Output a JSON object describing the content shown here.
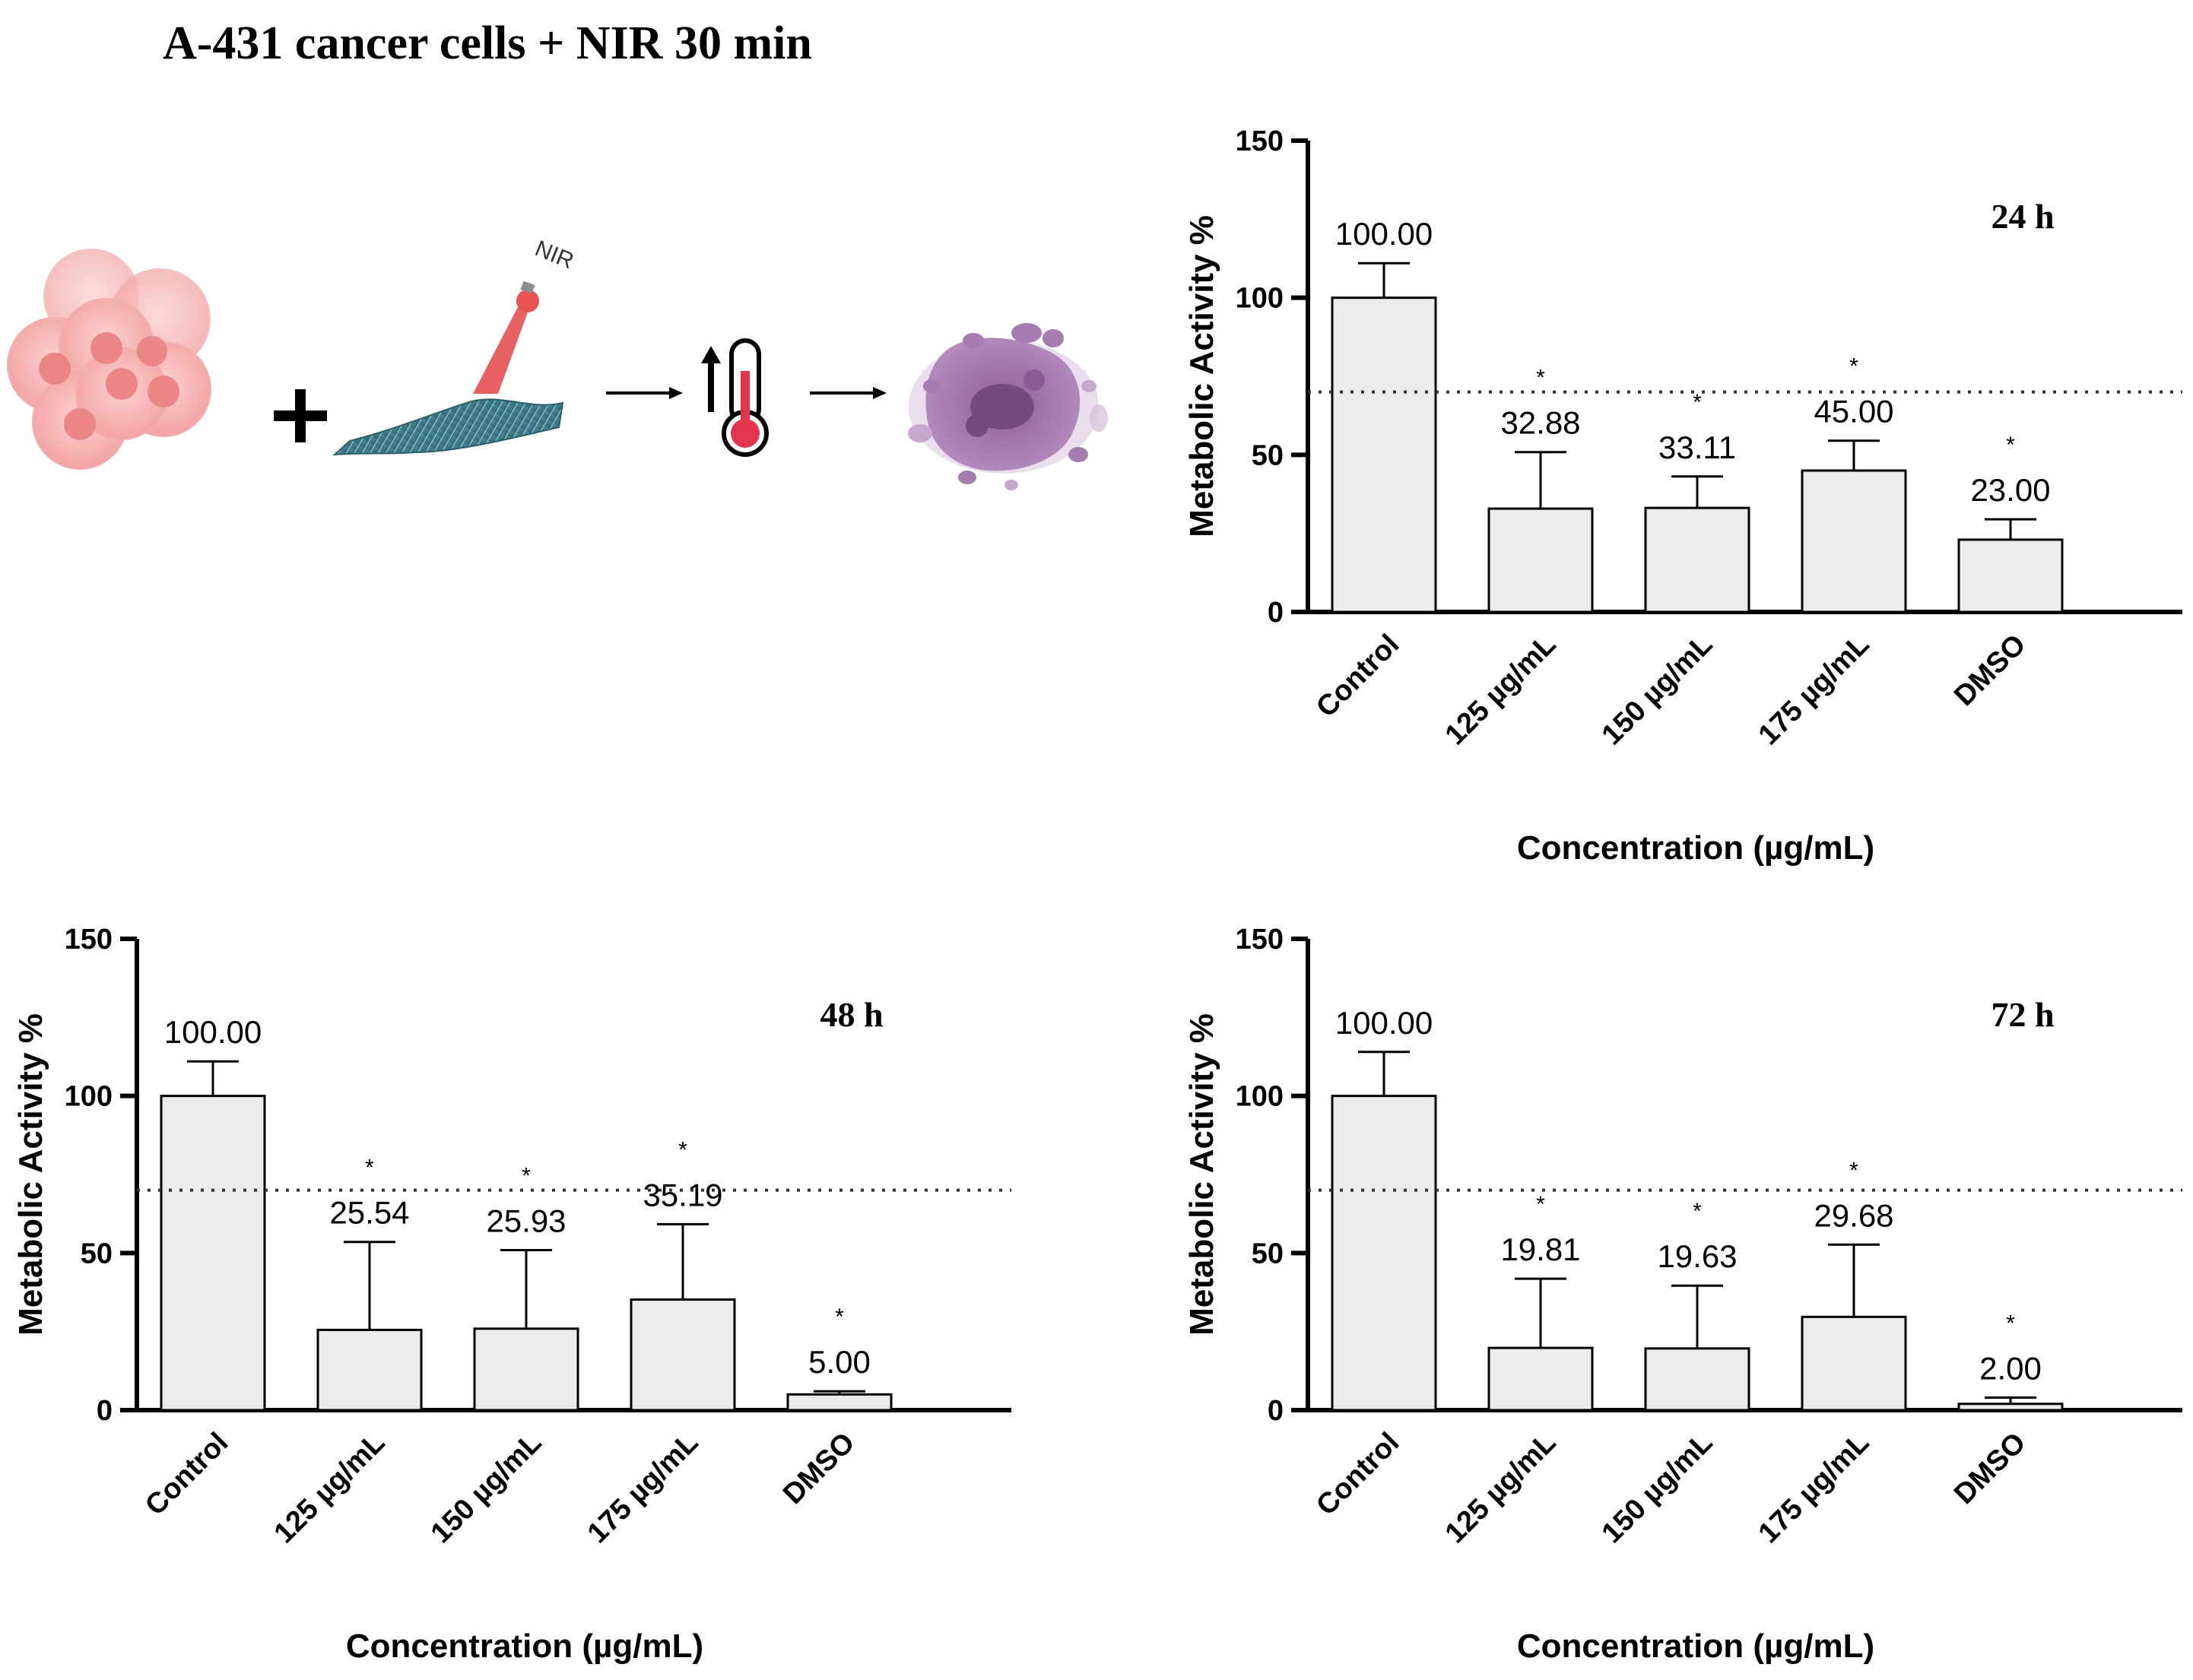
{
  "figure_title": "A-431 cancer cells + NIR 30 min",
  "schematic": {
    "laser_label": "NIR",
    "icons": [
      "cancer-cell-cluster-icon",
      "plus-icon",
      "nir-laser-icon",
      "nanofiber-mat-icon",
      "arrow-right-icon",
      "temperature-up-icon",
      "thermometer-icon",
      "dead-cell-icon"
    ]
  },
  "colors": {
    "bar_fill": "#ebebeb",
    "axis": "#000000",
    "threshold": "#333333"
  },
  "chart_data": [
    {
      "type": "bar",
      "title": "24 h",
      "categories": [
        "Control",
        "125 µg/mL",
        "150 µg/mL",
        "175 µg/mL",
        "DMSO"
      ],
      "values": [
        100.0,
        32.88,
        33.11,
        45.0,
        23.0
      ],
      "value_labels": [
        "100.00",
        "32.88",
        "33.11",
        "45.00",
        "23.00"
      ],
      "errors": [
        11,
        18,
        10,
        9.5,
        6.5
      ],
      "significance": [
        "",
        "*",
        "*",
        "*",
        "*"
      ],
      "xlabel": "Concentration (µg/mL)",
      "ylabel": "Metabolic Activity %",
      "ylim": [
        0,
        150
      ],
      "yticks": [
        0,
        50,
        100,
        150
      ],
      "threshold": 70
    },
    {
      "type": "bar",
      "title": "48 h",
      "categories": [
        "Control",
        "125 µg/mL",
        "150 µg/mL",
        "175 µg/mL",
        "DMSO"
      ],
      "values": [
        100.0,
        25.54,
        25.93,
        35.19,
        5.0
      ],
      "value_labels": [
        "100.00",
        "25.54",
        "25.93",
        "35.19",
        "5.00"
      ],
      "errors": [
        11,
        28,
        25,
        24,
        1
      ],
      "significance": [
        "",
        "*",
        "*",
        "*",
        "*"
      ],
      "xlabel": "Concentration (µg/mL)",
      "ylabel": "Metabolic Activity %",
      "ylim": [
        0,
        150
      ],
      "yticks": [
        0,
        50,
        100,
        150
      ],
      "threshold": 70
    },
    {
      "type": "bar",
      "title": "72 h",
      "categories": [
        "Control",
        "125 µg/mL",
        "150 µg/mL",
        "175 µg/mL",
        "DMSO"
      ],
      "values": [
        100.0,
        19.81,
        19.63,
        29.68,
        2.0
      ],
      "value_labels": [
        "100.00",
        "19.81",
        "19.63",
        "29.68",
        "2.00"
      ],
      "errors": [
        14,
        22,
        20,
        23,
        2
      ],
      "significance": [
        "",
        "*",
        "*",
        "*",
        "*"
      ],
      "xlabel": "Concentration (µg/mL)",
      "ylabel": "Metabolic Activity %",
      "ylim": [
        0,
        150
      ],
      "yticks": [
        0,
        50,
        100,
        150
      ],
      "threshold": 70
    }
  ]
}
